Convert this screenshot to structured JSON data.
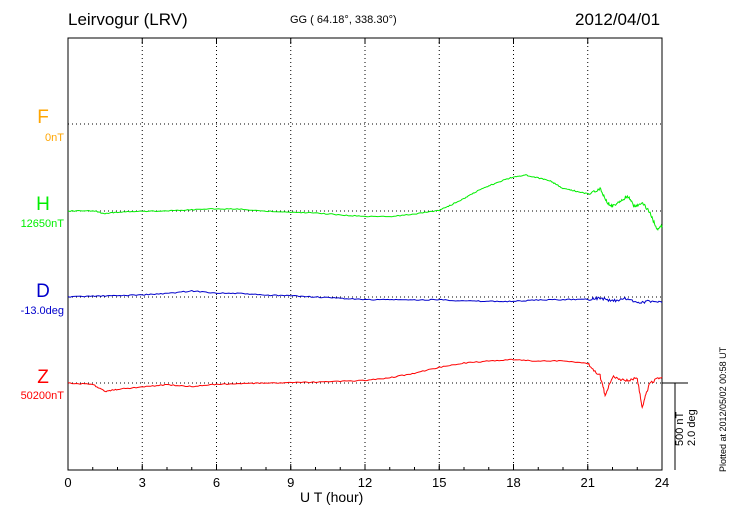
{
  "header": {
    "station": "Leirvogur (LRV)",
    "coordinates": "GG ( 64.18°, 338.30°)",
    "date": "2012/04/01"
  },
  "plotted_note": "Plotted at 2012/05/02 00:58 UT",
  "scale_bar": {
    "line1": "500 nT",
    "line2": "2.0 deg"
  },
  "channels": [
    {
      "letter": "F",
      "baseline": "0nT",
      "color": "#ffa500"
    },
    {
      "letter": "H",
      "baseline": "12650nT",
      "color": "#00ee00"
    },
    {
      "letter": "D",
      "baseline": "-13.0deg",
      "color": "#0000cc"
    },
    {
      "letter": "Z",
      "baseline": "50200nT",
      "color": "#ff0000"
    }
  ],
  "chart_data": {
    "type": "line",
    "title": "Leirvogur (LRV)",
    "xlabel": "U T (hour)",
    "x_ticks": [
      "0",
      "3",
      "6",
      "9",
      "12",
      "15",
      "18",
      "21",
      "24"
    ],
    "xlim": [
      0,
      24
    ],
    "grid": true,
    "scale": {
      "nT": 500,
      "deg": 2.0
    },
    "series": [
      {
        "name": "H",
        "unit": "nT",
        "baseline": 12650,
        "color": "#00ee00",
        "x": [
          0,
          1,
          1.5,
          2,
          3,
          4,
          5,
          6,
          7,
          8,
          9,
          10,
          11,
          12,
          13,
          14,
          15,
          15.5,
          16,
          16.5,
          17,
          17.5,
          18,
          18.5,
          19,
          19.5,
          20,
          20.5,
          21,
          21.5,
          21.8,
          22,
          22.3,
          22.6,
          22.9,
          23.2,
          23.5,
          23.8,
          24
        ],
        "y": [
          12650,
          12652,
          12634,
          12643,
          12648,
          12650,
          12657,
          12663,
          12660,
          12650,
          12643,
          12639,
          12627,
          12619,
          12617,
          12633,
          12654,
          12686,
          12722,
          12762,
          12794,
          12822,
          12846,
          12857,
          12840,
          12822,
          12780,
          12765,
          12749,
          12777,
          12693,
          12679,
          12700,
          12739,
          12672,
          12702,
          12642,
          12543,
          12566
        ]
      },
      {
        "name": "D",
        "unit": "deg",
        "baseline": -13.0,
        "color": "#0000cc",
        "x": [
          0,
          1,
          2,
          3,
          4,
          5,
          6,
          7,
          8,
          9,
          10,
          11,
          12,
          13,
          14,
          15,
          16,
          17,
          18,
          19,
          20,
          21,
          21.5,
          22,
          22.5,
          23,
          23.5,
          24
        ],
        "y": [
          -13.0,
          -12.98,
          -12.97,
          -12.95,
          -12.92,
          -12.86,
          -12.91,
          -12.92,
          -12.96,
          -12.97,
          -13.0,
          -13.03,
          -13.06,
          -13.06,
          -13.07,
          -13.06,
          -13.09,
          -13.1,
          -13.1,
          -13.07,
          -13.06,
          -13.05,
          -13.02,
          -13.1,
          -13.04,
          -13.12,
          -13.1,
          -13.13
        ]
      },
      {
        "name": "Z",
        "unit": "nT",
        "baseline": 50200,
        "color": "#ff0000",
        "x": [
          0,
          1,
          1.5,
          2,
          3,
          4,
          5,
          6,
          7,
          8,
          9,
          10,
          11,
          12,
          13,
          14,
          15,
          16,
          17,
          18,
          19,
          20,
          21,
          21.5,
          21.7,
          22,
          22.5,
          23,
          23.2,
          23.5,
          24
        ],
        "y": [
          50200,
          50192,
          50151,
          50164,
          50177,
          50190,
          50180,
          50193,
          50196,
          50200,
          50202,
          50205,
          50210,
          50215,
          50230,
          50256,
          50290,
          50315,
          50326,
          50335,
          50325,
          50329,
          50310,
          50241,
          50133,
          50235,
          50214,
          50226,
          50063,
          50199,
          50234
        ]
      }
    ]
  }
}
